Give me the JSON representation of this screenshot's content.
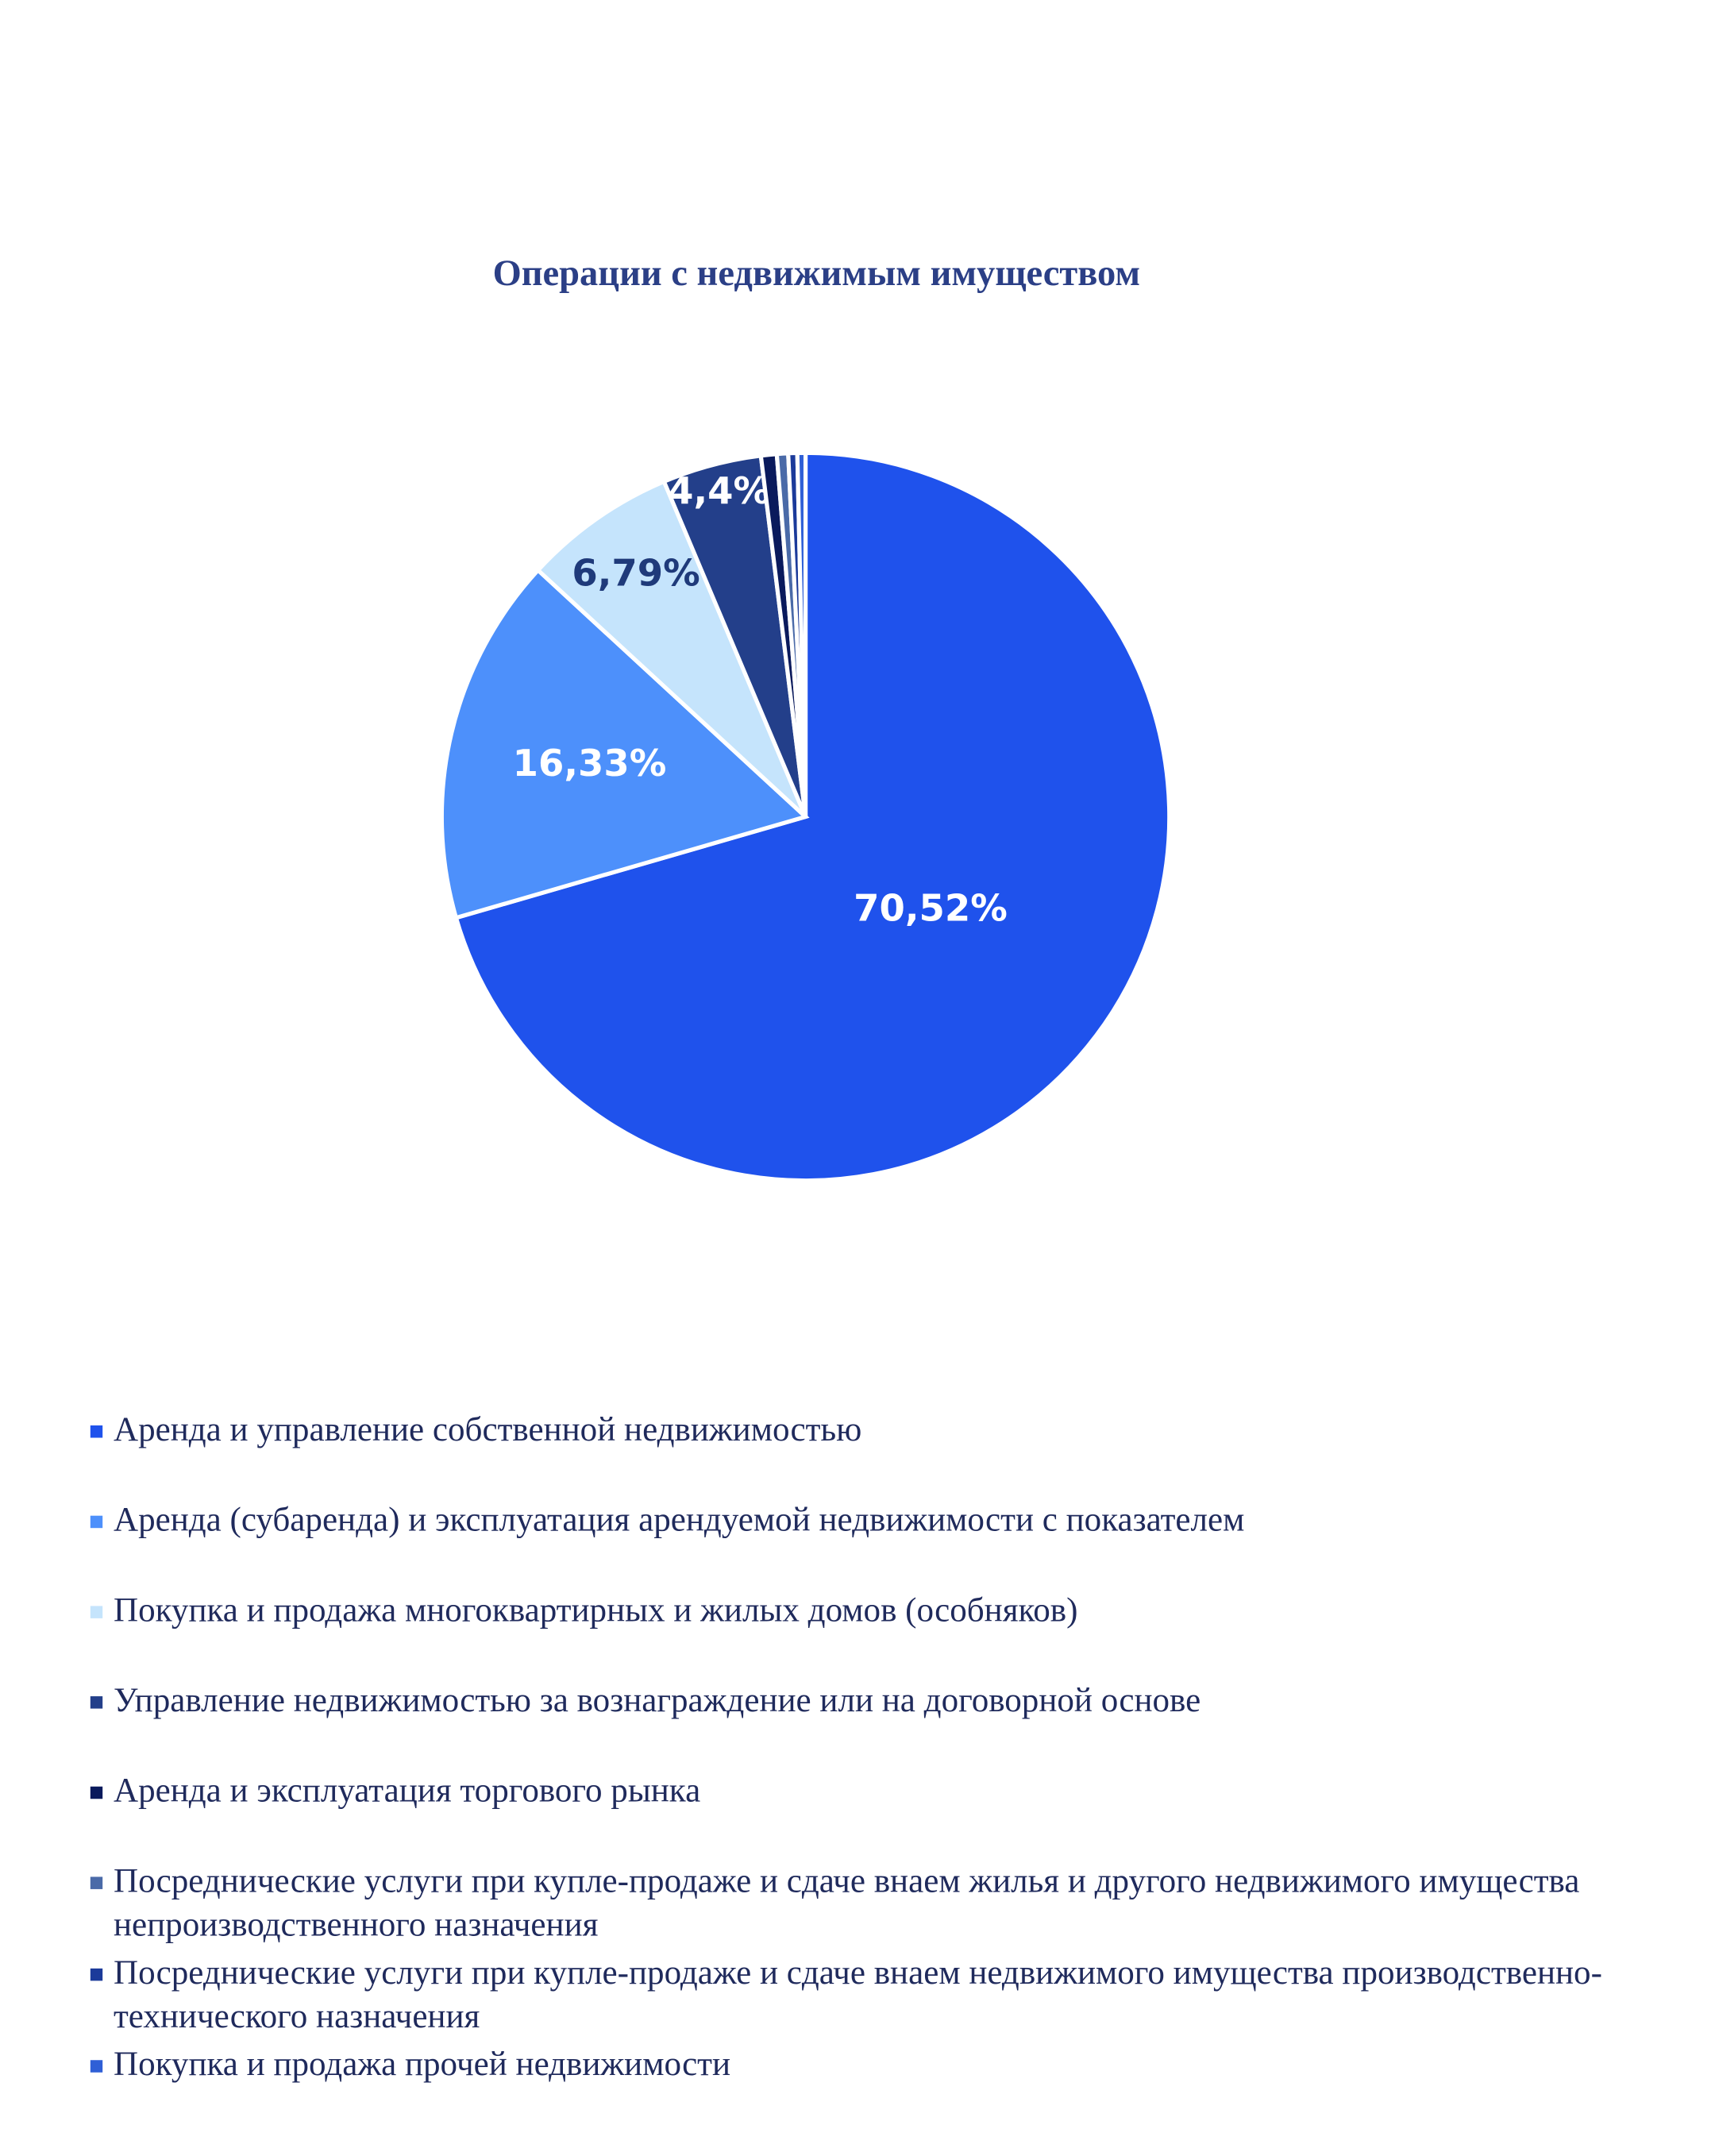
{
  "chart_data": {
    "type": "pie",
    "title": "Операции с недвижимым имуществом",
    "categories": [
      "Аренда и управление собственной недвижимостью",
      "Аренда (субаренда) и эксплуатация арендуемой недвижимости с показателем",
      "Покупка и продажа многоквартирных и жилых домов (особняков)",
      "Управление недвижимостью за вознаграждение или на договорной основе",
      "Аренда и эксплуатация торгового рынка",
      "Посреднические услуги при купле-продаже и сдаче внаем жилья и другого недвижимого имущества непроизводственного назначения",
      "Посреднические услуги при купле-продаже и сдаче внаем недвижимого имущества производственно-технического назначения",
      "Покупка и продажа прочей недвижимости"
    ],
    "values": [
      70.52,
      16.33,
      6.79,
      4.4,
      0.7,
      0.5,
      0.4,
      0.36
    ],
    "value_labels": [
      "70,52%",
      "16,33%",
      "6,79%",
      "4,4%",
      null,
      null,
      null,
      null
    ],
    "colors": [
      "#1f52ec",
      "#4d90fb",
      "#c5e4fc",
      "#233f8a",
      "#0a1a5c",
      "#4a6aa8",
      "#1b3a9a",
      "#2f5fd6"
    ],
    "legend": "bottom"
  }
}
